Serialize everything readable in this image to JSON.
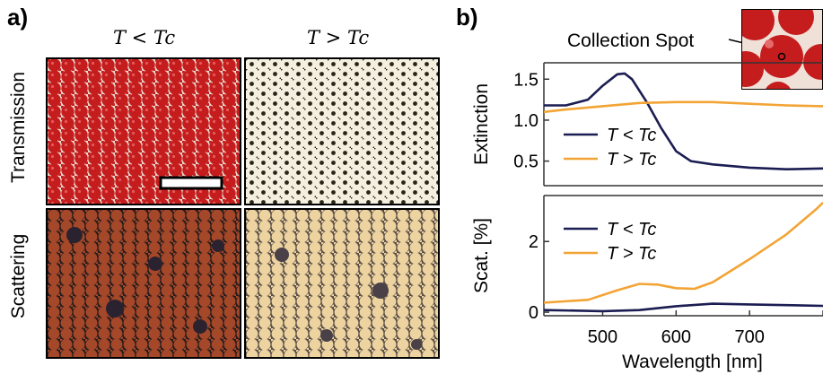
{
  "panel_a": {
    "label": "a)",
    "col_headers": [
      "T < Tc",
      "T > Tc"
    ],
    "row_labels": [
      "Transmission",
      "Scattering"
    ]
  },
  "panel_b": {
    "label": "b)",
    "inset_label": "Collection Spot"
  },
  "colors": {
    "below": "#1b1d52",
    "above": "#f2a435",
    "red_particles": "#c51d1d"
  },
  "chart_data": [
    {
      "type": "line",
      "ylabel": "Extinction",
      "xlabel": "",
      "xlim": [
        420,
        800
      ],
      "ylim": [
        0.2,
        1.7
      ],
      "yticks": [
        0.5,
        1.0,
        1.5
      ],
      "ytick_labels": [
        "0.5",
        "1.0",
        "1.5"
      ],
      "legend": [
        "T < Tc",
        "T > Tc"
      ],
      "series": [
        {
          "name": "T < Tc",
          "color": "#1b1d52",
          "x": [
            420,
            450,
            480,
            500,
            520,
            530,
            540,
            560,
            580,
            600,
            620,
            650,
            700,
            750,
            800
          ],
          "y": [
            1.18,
            1.18,
            1.25,
            1.42,
            1.56,
            1.57,
            1.5,
            1.22,
            0.9,
            0.62,
            0.5,
            0.46,
            0.42,
            0.4,
            0.41
          ]
        },
        {
          "name": "T > Tc",
          "color": "#f2a435",
          "x": [
            420,
            450,
            500,
            550,
            600,
            650,
            700,
            750,
            800
          ],
          "y": [
            1.1,
            1.13,
            1.17,
            1.21,
            1.22,
            1.22,
            1.2,
            1.18,
            1.17
          ]
        }
      ]
    },
    {
      "type": "line",
      "ylabel": "Scat. [%]",
      "xlabel": "Wavelength [nm]",
      "xlim": [
        420,
        800
      ],
      "ylim": [
        -0.1,
        3.3
      ],
      "xticks": [
        500,
        600,
        700
      ],
      "xtick_labels": [
        "500",
        "600",
        "700"
      ],
      "yticks": [
        0,
        2
      ],
      "ytick_labels": [
        "0",
        "2"
      ],
      "legend": [
        "T < Tc",
        "T > Tc"
      ],
      "series": [
        {
          "name": "T < Tc",
          "color": "#1b1d52",
          "x": [
            420,
            500,
            550,
            600,
            650,
            700,
            750,
            800
          ],
          "y": [
            0.06,
            0.03,
            0.06,
            0.17,
            0.24,
            0.22,
            0.2,
            0.18
          ]
        },
        {
          "name": "T > Tc",
          "color": "#f2a435",
          "x": [
            420,
            480,
            520,
            550,
            575,
            600,
            625,
            650,
            700,
            750,
            790,
            800
          ],
          "y": [
            0.27,
            0.35,
            0.62,
            0.8,
            0.78,
            0.68,
            0.66,
            0.85,
            1.5,
            2.2,
            2.9,
            3.1
          ]
        }
      ]
    }
  ]
}
